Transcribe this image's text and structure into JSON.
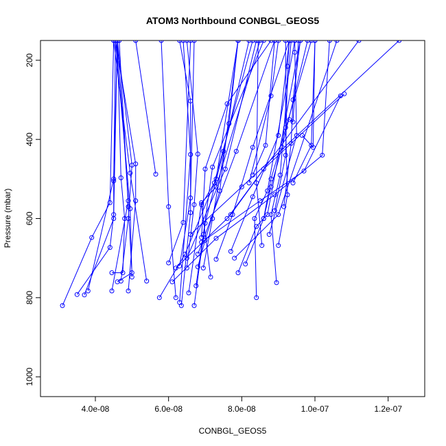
{
  "chart_data": {
    "type": "line",
    "title": "ATOM3 Northbound CONBGL_GEOS5",
    "xlabel": "CONBGL_GEOS5",
    "ylabel": "Pressure (mbar)",
    "xlim": [
      2.5e-08,
      1.3e-07
    ],
    "ylim": [
      1050,
      150
    ],
    "y_reversed": true,
    "grid": false,
    "x_ticks": [
      {
        "value": 4e-08,
        "label": "4.0e-08"
      },
      {
        "value": 6e-08,
        "label": "6.0e-08"
      },
      {
        "value": 8e-08,
        "label": "8.0e-08"
      },
      {
        "value": 1e-07,
        "label": "1.0e-07"
      },
      {
        "value": 1.2e-07,
        "label": "1.2e-07"
      }
    ],
    "y_ticks": [
      {
        "value": 200,
        "label": "200"
      },
      {
        "value": 400,
        "label": "400"
      },
      {
        "value": 600,
        "label": "600"
      },
      {
        "value": 800,
        "label": "800"
      },
      {
        "value": 1000,
        "label": "1000"
      }
    ],
    "series_color": "#0000ff",
    "profiles": [
      {
        "points": [
          [
            3.1e-08,
            820
          ],
          [
            3.9e-08,
            648
          ],
          [
            4.4e-08,
            560
          ],
          [
            4.5e-08,
            150
          ]
        ]
      },
      {
        "points": [
          [
            3.5e-08,
            792
          ],
          [
            4.4e-08,
            673
          ],
          [
            4.5e-08,
            590
          ],
          [
            4.6e-08,
            150
          ]
        ]
      },
      {
        "points": [
          [
            3.7e-08,
            793
          ],
          [
            4.5e-08,
            600
          ],
          [
            4.5e-08,
            505
          ],
          [
            4.55e-08,
            150
          ]
        ]
      },
      {
        "points": [
          [
            3.8e-08,
            783
          ],
          [
            4.5e-08,
            500
          ],
          [
            4.6e-08,
            150
          ]
        ]
      },
      {
        "points": [
          [
            4.45e-08,
            737
          ],
          [
            4.75e-08,
            737
          ],
          [
            4.8e-08,
            600
          ],
          [
            4.7e-08,
            497
          ],
          [
            4.6e-08,
            150
          ]
        ]
      },
      {
        "points": [
          [
            4.45e-08,
            783
          ],
          [
            4.9e-08,
            555
          ],
          [
            4.6e-08,
            150
          ]
        ]
      },
      {
        "points": [
          [
            4.6e-08,
            760
          ],
          [
            5e-08,
            737
          ],
          [
            4.9e-08,
            570
          ],
          [
            4.65e-08,
            150
          ]
        ]
      },
      {
        "points": [
          [
            4.7e-08,
            758
          ],
          [
            4.9e-08,
            600
          ],
          [
            5e-08,
            465
          ],
          [
            4.6e-08,
            150
          ]
        ]
      },
      {
        "points": [
          [
            4.9e-08,
            783
          ],
          [
            5.1e-08,
            555
          ],
          [
            5.1e-08,
            462
          ],
          [
            4.55e-08,
            150
          ]
        ]
      },
      {
        "points": [
          [
            5.4e-08,
            758
          ],
          [
            4.95e-08,
            485
          ],
          [
            4.5e-08,
            150
          ]
        ]
      },
      {
        "points": [
          [
            5e-08,
            748
          ],
          [
            4.95e-08,
            575
          ],
          [
            4.55e-08,
            150
          ]
        ]
      },
      {
        "points": [
          [
            5.65e-08,
            488
          ],
          [
            5.1e-08,
            150
          ]
        ]
      },
      {
        "points": [
          [
            5.75e-08,
            800
          ],
          [
            6.45e-08,
            690
          ],
          [
            7.3e-08,
            500
          ],
          [
            7.9e-08,
            150
          ]
        ]
      },
      {
        "points": [
          [
            6e-08,
            712
          ],
          [
            6.4e-08,
            610
          ],
          [
            6.6e-08,
            150
          ]
        ]
      },
      {
        "points": [
          [
            6.2e-08,
            800
          ],
          [
            6e-08,
            570
          ],
          [
            5.8e-08,
            150
          ]
        ]
      },
      {
        "points": [
          [
            6.3e-08,
            720
          ],
          [
            6.6e-08,
            548
          ],
          [
            6.7e-08,
            150
          ]
        ]
      },
      {
        "points": [
          [
            6.3e-08,
            812
          ],
          [
            6.6e-08,
            438
          ],
          [
            6.4e-08,
            150
          ]
        ]
      },
      {
        "points": [
          [
            6.35e-08,
            820
          ],
          [
            6.6e-08,
            585
          ],
          [
            6.6e-08,
            303
          ],
          [
            6.3e-08,
            150
          ]
        ]
      },
      {
        "points": [
          [
            6.5e-08,
            725
          ],
          [
            6.7e-08,
            565
          ],
          [
            6.8e-08,
            437
          ],
          [
            6.5e-08,
            150
          ]
        ]
      },
      {
        "points": [
          [
            6.55e-08,
            788
          ],
          [
            6.9e-08,
            560
          ],
          [
            7.3e-08,
            520
          ],
          [
            8.5e-08,
            150
          ]
        ]
      },
      {
        "points": [
          [
            6.7e-08,
            820
          ],
          [
            7e-08,
            612
          ],
          [
            7.5e-08,
            430
          ],
          [
            8.2e-08,
            150
          ]
        ]
      },
      {
        "points": [
          [
            6.75e-08,
            770
          ],
          [
            6.95e-08,
            640
          ],
          [
            7.2e-08,
            470
          ],
          [
            8.6e-08,
            150
          ]
        ]
      },
      {
        "points": [
          [
            6.8e-08,
            722
          ],
          [
            7e-08,
            655
          ],
          [
            7.4e-08,
            530
          ],
          [
            7.9e-08,
            150
          ]
        ]
      },
      {
        "points": [
          [
            6.9e-08,
            648
          ],
          [
            7e-08,
            475
          ],
          [
            7.6e-08,
            310
          ],
          [
            8.8e-08,
            150
          ]
        ]
      },
      {
        "points": [
          [
            6.95e-08,
            725
          ],
          [
            7.2e-08,
            600
          ],
          [
            7.65e-08,
            360
          ],
          [
            7.9e-08,
            150
          ]
        ]
      },
      {
        "points": [
          [
            7.15e-08,
            748
          ],
          [
            6.9e-08,
            565
          ],
          [
            7.25e-08,
            510
          ],
          [
            8.3e-08,
            150
          ]
        ]
      },
      {
        "points": [
          [
            7.3e-08,
            703
          ],
          [
            7.75e-08,
            590
          ],
          [
            8.3e-08,
            420
          ],
          [
            9.3e-08,
            150
          ]
        ]
      },
      {
        "points": [
          [
            6.5e-08,
            700
          ],
          [
            7.55e-08,
            475
          ],
          [
            8.4e-08,
            150
          ]
        ]
      },
      {
        "points": [
          [
            6.8e-08,
            690
          ],
          [
            7.85e-08,
            430
          ],
          [
            8.9e-08,
            150
          ]
        ]
      },
      {
        "points": [
          [
            7.7e-08,
            683
          ],
          [
            8.3e-08,
            545
          ],
          [
            9e-08,
            390
          ],
          [
            9.3e-08,
            150
          ]
        ]
      },
      {
        "points": [
          [
            7.9e-08,
            737
          ],
          [
            8.4e-08,
            620
          ],
          [
            8.7e-08,
            590
          ],
          [
            9.6e-08,
            150
          ]
        ]
      },
      {
        "points": [
          [
            8.1e-08,
            715
          ],
          [
            8.6e-08,
            600
          ],
          [
            8.8e-08,
            500
          ],
          [
            9.9e-08,
            150
          ]
        ]
      },
      {
        "points": [
          [
            8.4e-08,
            800
          ],
          [
            8.35e-08,
            600
          ],
          [
            8.7e-08,
            530
          ],
          [
            9.45e-08,
            150
          ]
        ]
      },
      {
        "points": [
          [
            8.6e-08,
            600
          ],
          [
            8.8e-08,
            520
          ],
          [
            9.1e-08,
            420
          ],
          [
            9.8e-08,
            150
          ]
        ]
      },
      {
        "points": [
          [
            8.95e-08,
            762
          ],
          [
            8.8e-08,
            590
          ],
          [
            9.05e-08,
            490
          ],
          [
            9.35e-08,
            150
          ]
        ]
      },
      {
        "points": [
          [
            8.55e-08,
            668
          ],
          [
            8.4e-08,
            510
          ],
          [
            8.45e-08,
            150
          ]
        ]
      },
      {
        "points": [
          [
            9e-08,
            668
          ],
          [
            9.25e-08,
            540
          ],
          [
            9.2e-08,
            370
          ],
          [
            9.2e-08,
            150
          ]
        ]
      },
      {
        "points": [
          [
            9.15e-08,
            570
          ],
          [
            9.35e-08,
            410
          ],
          [
            9.4e-08,
            300
          ],
          [
            9.6e-08,
            150
          ]
        ]
      },
      {
        "points": [
          [
            8.9e-08,
            580
          ],
          [
            9.2e-08,
            440
          ],
          [
            9.25e-08,
            215
          ],
          [
            9.3e-08,
            150
          ]
        ]
      },
      {
        "points": [
          [
            8.75e-08,
            640
          ],
          [
            9.5e-08,
            390
          ],
          [
            9.45e-08,
            180
          ],
          [
            9.45e-08,
            150
          ]
        ]
      },
      {
        "points": [
          [
            9.4e-08,
            510
          ],
          [
            9.9e-08,
            415
          ],
          [
            1e-07,
            150
          ]
        ]
      },
      {
        "points": [
          [
            9.65e-08,
            390
          ],
          [
            9.95e-08,
            420
          ],
          [
            1e-07,
            150
          ]
        ]
      },
      {
        "points": [
          [
            8.3e-08,
            490
          ],
          [
            8.65e-08,
            415
          ],
          [
            8.9e-08,
            150
          ]
        ]
      },
      {
        "points": [
          [
            9.3e-08,
            350
          ],
          [
            9.4e-08,
            356
          ],
          [
            9.55e-08,
            150
          ]
        ]
      },
      {
        "points": [
          [
            8.2e-08,
            510
          ],
          [
            8.8e-08,
            290
          ],
          [
            9e-08,
            150
          ]
        ]
      },
      {
        "points": [
          [
            7.7e-08,
            590
          ],
          [
            8.6e-08,
            475
          ],
          [
            1.08e-07,
            285
          ]
        ]
      },
      {
        "points": [
          [
            6.9e-08,
            660
          ],
          [
            8.5e-08,
            555
          ],
          [
            9.7e-08,
            480
          ],
          [
            1.07e-07,
            290
          ]
        ]
      },
      {
        "points": [
          [
            6.6e-08,
            640
          ],
          [
            8e-08,
            520
          ],
          [
            1.23e-07,
            150
          ]
        ]
      },
      {
        "points": [
          [
            6.2e-08,
            725
          ],
          [
            7.6e-08,
            600
          ],
          [
            1.12e-07,
            150
          ]
        ]
      },
      {
        "points": [
          [
            7.8e-08,
            700
          ],
          [
            9e-08,
            590
          ],
          [
            1.06e-07,
            150
          ]
        ]
      },
      {
        "points": [
          [
            6.1e-08,
            760
          ],
          [
            7.3e-08,
            650
          ],
          [
            8.9e-08,
            540
          ],
          [
            1.02e-07,
            440
          ],
          [
            1.04e-07,
            150
          ]
        ]
      }
    ]
  }
}
